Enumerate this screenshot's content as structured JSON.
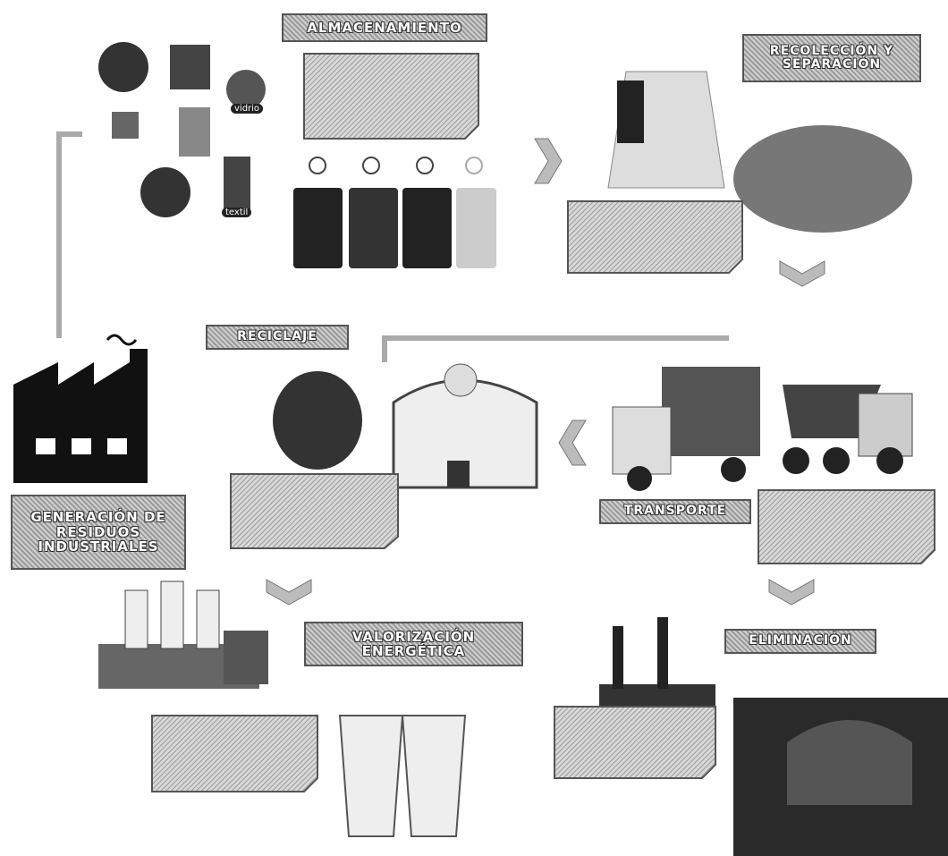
{
  "stages": [
    {
      "title": "ALMACENAMIENTO"
    },
    {
      "title": "RECOLECCIÓN Y SEPARACIÓN"
    },
    {
      "title": "RECICLAJE"
    },
    {
      "title": "TRANSPORTE"
    },
    {
      "title": "GENERACIÓN DE RESIDUOS INDUSTRIALES"
    },
    {
      "title": "VALORIZACIÓN ENERGÉTICA"
    },
    {
      "title": "ELIMINACIÓN"
    }
  ],
  "icons": [
    {
      "label": "vidrio"
    },
    {
      "label": "textil"
    }
  ]
}
